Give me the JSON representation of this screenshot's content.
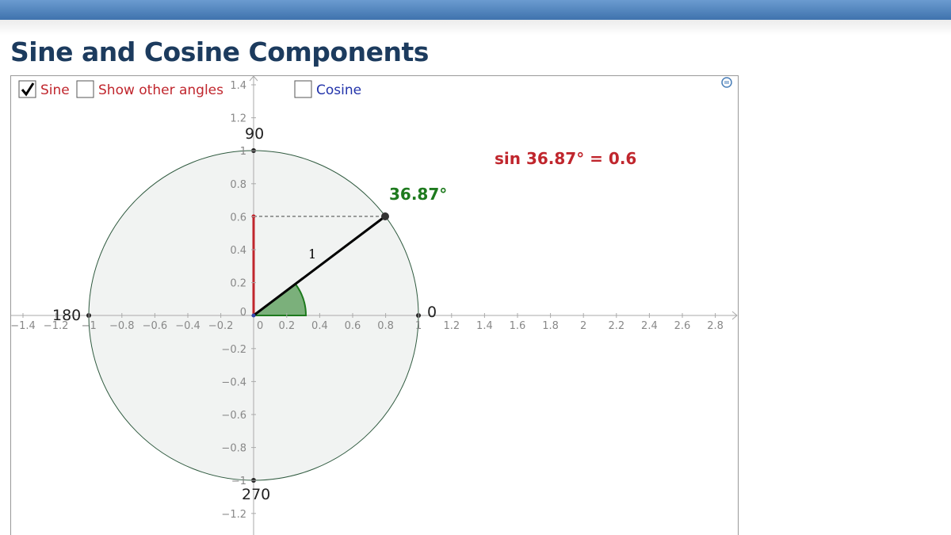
{
  "header": {
    "title": "Sine and Cosine Components"
  },
  "controls": {
    "sine": {
      "label": "Sine",
      "checked": true
    },
    "other_angles": {
      "label": "Show other angles",
      "checked": false
    },
    "cosine": {
      "label": "Cosine",
      "checked": false
    }
  },
  "graph": {
    "x_ticks": [
      "−1.4",
      "−1.2",
      "−1",
      "−0.8",
      "−0.6",
      "−0.4",
      "−0.2",
      "0",
      "0.2",
      "0.4",
      "0.6",
      "0.8",
      "1",
      "1.2",
      "1.4",
      "1.6",
      "1.8",
      "2",
      "2.2",
      "2.4",
      "2.6",
      "2.8"
    ],
    "y_ticks": [
      "1.4",
      "1.2",
      "1",
      "0.8",
      "0.6",
      "0.4",
      "0.2",
      "0",
      "−0.2",
      "−0.4",
      "−0.6",
      "−0.8",
      "−1",
      "−1.2"
    ],
    "angle_labels": {
      "top": "90",
      "left": "180",
      "bottom": "270",
      "right": "0"
    },
    "radius_label": "1",
    "angle": "36.87°",
    "readout": "sin 36.87° = 0.6"
  }
}
